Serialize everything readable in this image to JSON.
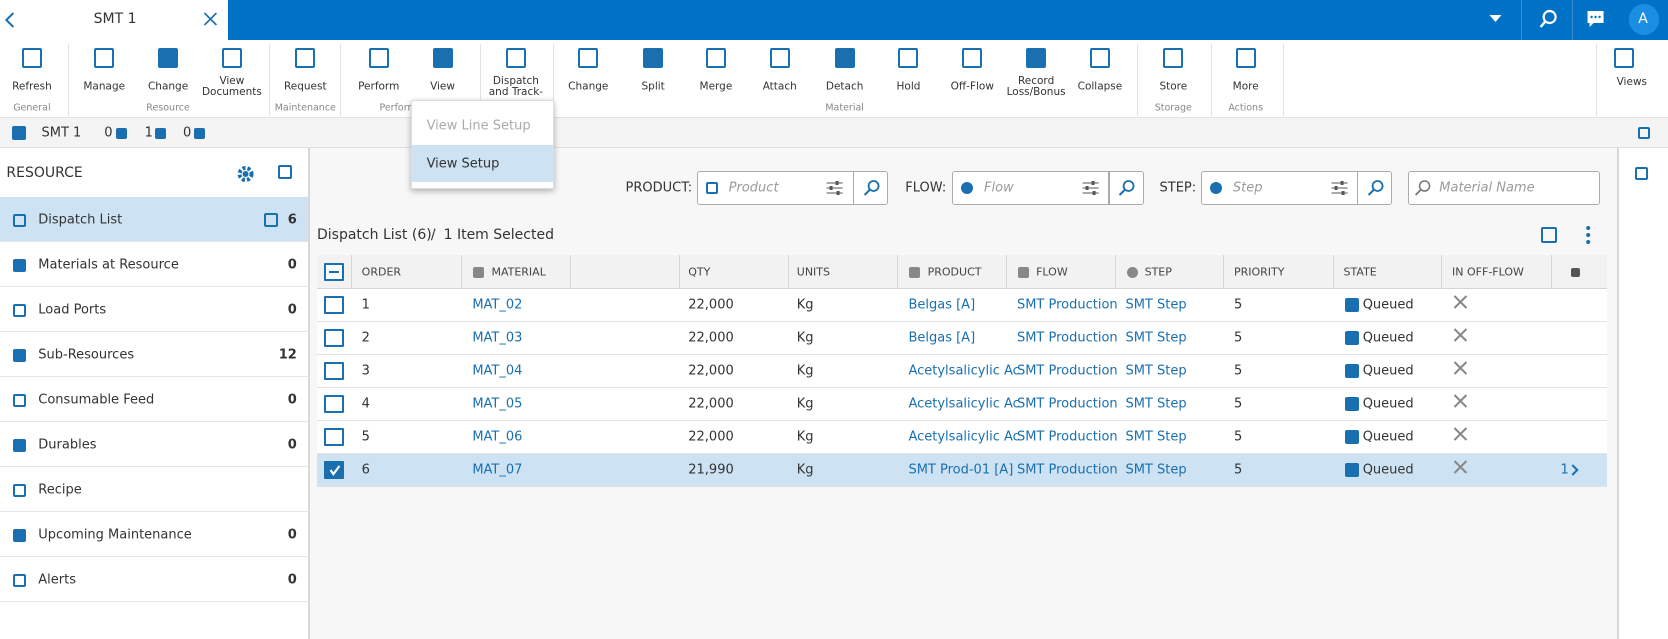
{
  "top_bar": {
    "tab_title": "SMT 1",
    "avatar": "A"
  },
  "toolbar": {
    "groups": [
      {
        "label": "General",
        "buttons": [
          "Refresh"
        ]
      },
      {
        "label": "Resource",
        "buttons": [
          "Manage",
          "Change",
          "View Documents"
        ]
      },
      {
        "label": "Maintenance",
        "buttons": [
          "Request"
        ]
      },
      {
        "label": "Performance",
        "buttons": [
          "Perform",
          "View",
          "Dispatch and Track-"
        ]
      },
      {
        "label": "Material",
        "buttons": [
          "Change",
          "Split",
          "Merge",
          "Attach",
          "Detach",
          "Hold",
          "Off-Flow",
          "Record Loss/Bonus",
          "Collapse"
        ]
      },
      {
        "label": "Storage",
        "buttons": [
          "Store"
        ]
      },
      {
        "label": "Actions",
        "buttons": [
          "More"
        ]
      }
    ],
    "right_button": "Views"
  },
  "view_menu": {
    "items": [
      "View Line Setup",
      "View Setup"
    ]
  },
  "info_bar": {
    "resource": "SMT 1",
    "counts": [
      "0",
      "1",
      "0"
    ]
  },
  "sidebar": {
    "title": "RESOURCE",
    "items": [
      {
        "name": "Dispatch List",
        "count": "6"
      },
      {
        "name": "Materials at Resource",
        "count": "0"
      },
      {
        "name": "Load Ports",
        "count": "0"
      },
      {
        "name": "Sub-Resources",
        "count": "12"
      },
      {
        "name": "Consumable Feed",
        "count": "0"
      },
      {
        "name": "Durables",
        "count": "0"
      },
      {
        "name": "Recipe"
      },
      {
        "name": "Upcoming Maintenance",
        "count": "0"
      },
      {
        "name": "Alerts",
        "count": "0"
      }
    ]
  },
  "filters": {
    "product_label": "PRODUCT:",
    "product_placeholder": "Product",
    "flow_label": "FLOW:",
    "flow_placeholder": "Flow",
    "step_label": "STEP:",
    "step_placeholder": "Step",
    "material_placeholder": "Material Name"
  },
  "list": {
    "title": "Dispatch List (6)",
    "separator": "/",
    "selection": "1 Item Selected",
    "columns": [
      "ORDER",
      "MATERIAL",
      null,
      "QTY",
      "UNITS",
      "PRODUCT",
      "FLOW",
      "STEP",
      "PRIORITY",
      "STATE",
      "IN OFF-FLOW",
      null
    ],
    "rows": [
      {
        "order": "1",
        "material": "MAT_02",
        "qty": "22,000",
        "units": "Kg",
        "product": "Belgas [A]",
        "flow": "SMT Production",
        "step": "SMT Step",
        "priority": "5",
        "state": "Queued"
      },
      {
        "order": "2",
        "material": "MAT_03",
        "qty": "22,000",
        "units": "Kg",
        "product": "Belgas [A]",
        "flow": "SMT Production",
        "step": "SMT Step",
        "priority": "5",
        "state": "Queued"
      },
      {
        "order": "3",
        "material": "MAT_04",
        "qty": "22,000",
        "units": "Kg",
        "product": "Acetylsalicylic Ac",
        "flow": "SMT Production",
        "step": "SMT Step",
        "priority": "5",
        "state": "Queued"
      },
      {
        "order": "4",
        "material": "MAT_05",
        "qty": "22,000",
        "units": "Kg",
        "product": "Acetylsalicylic Ac",
        "flow": "SMT Production",
        "step": "SMT Step",
        "priority": "5",
        "state": "Queued"
      },
      {
        "order": "5",
        "material": "MAT_06",
        "qty": "22,000",
        "units": "Kg",
        "product": "Acetylsalicylic Ac",
        "flow": "SMT Production",
        "step": "SMT Step",
        "priority": "5",
        "state": "Queued"
      },
      {
        "order": "6",
        "material": "MAT_07",
        "qty": "21,990",
        "units": "Kg",
        "product": "SMT Prod-01 [A]",
        "flow": "SMT Production",
        "step": "SMT Step",
        "priority": "5",
        "state": "Queued",
        "detail_count": "1"
      }
    ]
  }
}
